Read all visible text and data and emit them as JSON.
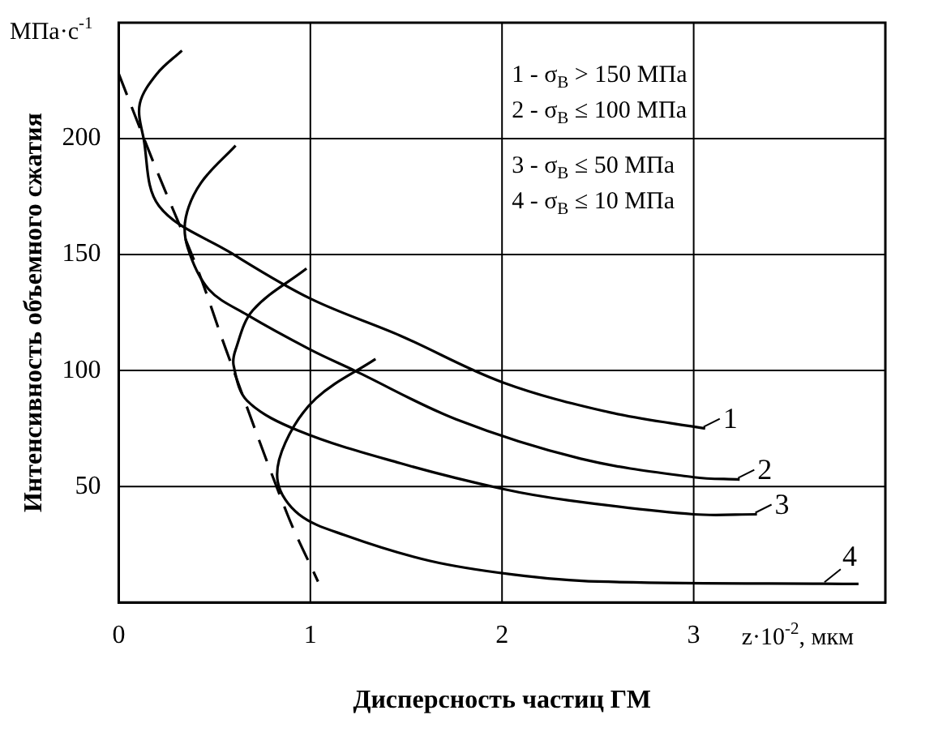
{
  "chart_data": {
    "type": "line",
    "xlabel": "Дисперсность частиц ГМ",
    "ylabel": "Интенсивность объемного сжатия",
    "xlim": [
      0,
      4
    ],
    "ylim": [
      0,
      250
    ],
    "xticks": [
      0,
      1,
      2,
      3
    ],
    "yticks": [
      50,
      100,
      150,
      200
    ],
    "grid": true,
    "marker": "none",
    "legend": "right",
    "series": [
      {
        "name": "1",
        "color": "#000000",
        "x": [
          0.33,
          0.2,
          0.11,
          0.13,
          0.21,
          0.58,
          1.0,
          1.47,
          2.0,
          2.56,
          3.06
        ],
        "values": [
          238,
          228,
          215,
          200,
          171,
          151,
          131,
          115,
          95,
          82,
          75
        ]
      },
      {
        "name": "2",
        "color": "#000000",
        "x": [
          0.61,
          0.43,
          0.35,
          0.36,
          0.47,
          0.67,
          1.0,
          1.23,
          1.76,
          2.41,
          3.0,
          3.24
        ],
        "values": [
          197,
          181,
          166,
          153,
          135,
          124,
          109,
          100,
          79,
          62,
          54,
          53
        ]
      },
      {
        "name": "3",
        "color": "#000000",
        "x": [
          0.98,
          0.7,
          0.61,
          0.6,
          0.67,
          0.94,
          1.47,
          2.0,
          2.35,
          3.0,
          3.33
        ],
        "values": [
          144,
          126,
          109,
          102,
          87,
          74,
          60,
          49,
          44,
          38,
          38
        ]
      },
      {
        "name": "4",
        "color": "#000000",
        "x": [
          1.34,
          1.03,
          0.87,
          0.83,
          0.94,
          1.18,
          1.62,
          2.06,
          2.5,
          3.86
        ],
        "values": [
          105,
          88,
          69,
          52,
          38,
          29,
          18,
          12,
          9,
          8
        ]
      },
      {
        "color": "#000000",
        "line_style": "dashed",
        "x": [
          0,
          0.19,
          0.41,
          0.56,
          0.88,
          1.04
        ],
        "values": [
          228,
          188,
          144,
          109,
          38,
          9
        ]
      }
    ],
    "annotations": [
      "1 - σ$_{В}$ > 150 МПа",
      "2 - σ$_{В}$ ≤ 100 МПа",
      "3 - σ$_{В}$ ≤ 50 МПа",
      "4 - σ$_{В}$ ≤ 10 МПа",
      "МПа·с$^{-1}$",
      "z·10$^{-2}$, мкм"
    ]
  }
}
